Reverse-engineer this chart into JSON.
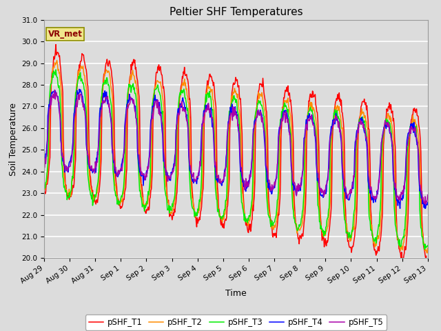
{
  "title": "Peltier SHF Temperatures",
  "ylabel": "Soil Temperature",
  "xlabel": "Time",
  "ylim": [
    20.0,
    31.0
  ],
  "yticks": [
    20.0,
    21.0,
    22.0,
    23.0,
    24.0,
    25.0,
    26.0,
    27.0,
    28.0,
    29.0,
    30.0,
    31.0
  ],
  "xtick_labels": [
    "Aug 29",
    "Aug 30",
    "Aug 31",
    "Sep 1",
    "Sep 2",
    "Sep 3",
    "Sep 4",
    "Sep 5",
    "Sep 6",
    "Sep 7",
    "Sep 8",
    "Sep 9",
    "Sep 10",
    "Sep 11",
    "Sep 12",
    "Sep 13"
  ],
  "vr_met_label": "VR_met",
  "line_colors": {
    "pSHF_T1": "#ff0000",
    "pSHF_T2": "#ff8c00",
    "pSHF_T3": "#00ee00",
    "pSHF_T4": "#0000ff",
    "pSHF_T5": "#aa00aa"
  },
  "legend_labels": [
    "pSHF_T1",
    "pSHF_T2",
    "pSHF_T3",
    "pSHF_T4",
    "pSHF_T5"
  ],
  "background_color": "#dcdcdc",
  "plot_bg_color": "#dcdcdc",
  "n_days": 15,
  "points_per_day": 48,
  "title_fontsize": 11,
  "axis_label_fontsize": 9,
  "tick_fontsize": 7.5
}
